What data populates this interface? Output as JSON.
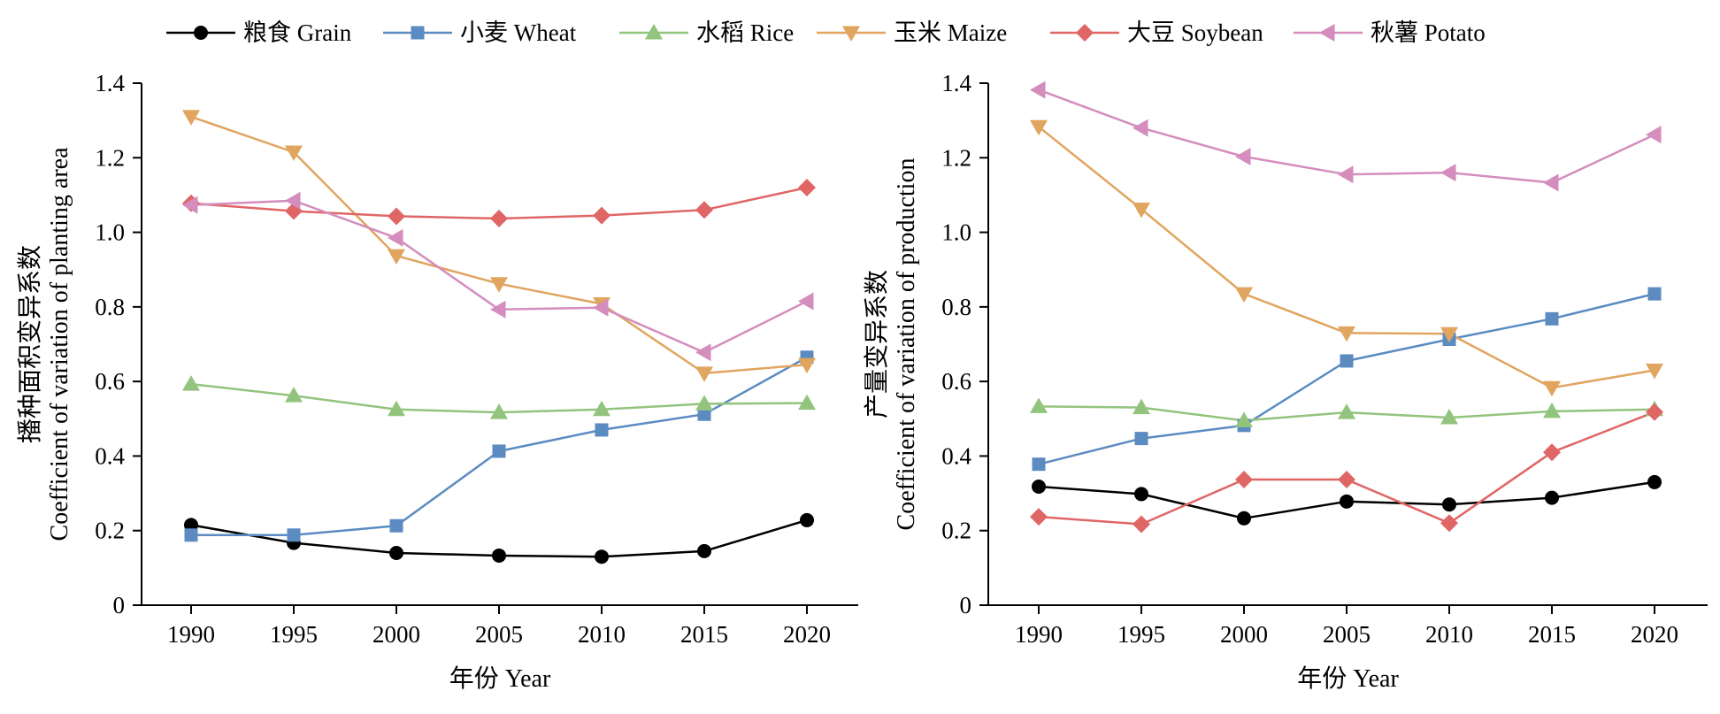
{
  "legend": [
    {
      "key": "grain",
      "label": "粮食 Grain",
      "color": "#000000",
      "marker": "circle"
    },
    {
      "key": "wheat",
      "label": "小麦 Wheat",
      "color": "#5b8bc1",
      "marker": "square"
    },
    {
      "key": "rice",
      "label": "水稻 Rice",
      "color": "#93c47d",
      "marker": "triangle-up"
    },
    {
      "key": "maize",
      "label": "玉米 Maize",
      "color": "#e0a55f",
      "marker": "triangle-down"
    },
    {
      "key": "soybean",
      "label": "大豆 Soybean",
      "color": "#e06666",
      "marker": "diamond"
    },
    {
      "key": "potato",
      "label": "秋薯 Potato",
      "color": "#d48dbd",
      "marker": "triangle-left"
    }
  ],
  "chart_data": [
    {
      "type": "line",
      "xlabel": "年份 Year",
      "ylabel_cn": "播种面积变异系数",
      "ylabel_en": "Coefficient of variation of planting area",
      "x": [
        1990,
        1995,
        2000,
        2005,
        2010,
        2015,
        2020
      ],
      "xticks": [
        "1990",
        "1995",
        "2000",
        "2005",
        "2010",
        "2015",
        "2020"
      ],
      "ylim": [
        0,
        1.4
      ],
      "yticks": [
        "0",
        "0.2",
        "0.4",
        "0.6",
        "0.8",
        "1.0",
        "1.2",
        "1.4"
      ],
      "grid": false,
      "series": [
        {
          "name": "粮食 Grain",
          "key": "grain",
          "values": [
            0.215,
            0.167,
            0.14,
            0.133,
            0.13,
            0.145,
            0.228
          ]
        },
        {
          "name": "小麦 Wheat",
          "key": "wheat",
          "values": [
            0.188,
            0.188,
            0.213,
            0.413,
            0.47,
            0.512,
            0.665
          ]
        },
        {
          "name": "水稻 Rice",
          "key": "rice",
          "values": [
            0.593,
            0.562,
            0.525,
            0.517,
            0.525,
            0.54,
            0.542
          ]
        },
        {
          "name": "玉米 Maize",
          "key": "maize",
          "values": [
            1.31,
            1.215,
            0.937,
            0.862,
            0.808,
            0.622,
            0.645
          ]
        },
        {
          "name": "大豆 Soybean",
          "key": "soybean",
          "values": [
            1.078,
            1.057,
            1.043,
            1.037,
            1.045,
            1.06,
            1.12
          ]
        },
        {
          "name": "秋薯 Potato",
          "key": "potato",
          "values": [
            1.073,
            1.085,
            0.985,
            0.793,
            0.798,
            0.678,
            0.815
          ]
        }
      ]
    },
    {
      "type": "line",
      "xlabel": "年份 Year",
      "ylabel_cn": "产量变异系数",
      "ylabel_en": "Coefficient of variation of production",
      "x": [
        1990,
        1995,
        2000,
        2005,
        2010,
        2015,
        2020
      ],
      "xticks": [
        "1990",
        "1995",
        "2000",
        "2005",
        "2010",
        "2015",
        "2020"
      ],
      "ylim": [
        0,
        1.4
      ],
      "yticks": [
        "0",
        "0.2",
        "0.4",
        "0.6",
        "0.8",
        "1.0",
        "1.2",
        "1.4"
      ],
      "grid": false,
      "series": [
        {
          "name": "粮食 Grain",
          "key": "grain",
          "values": [
            0.318,
            0.298,
            0.233,
            0.278,
            0.27,
            0.288,
            0.33
          ]
        },
        {
          "name": "小麦 Wheat",
          "key": "wheat",
          "values": [
            0.378,
            0.447,
            0.482,
            0.655,
            0.713,
            0.768,
            0.835
          ]
        },
        {
          "name": "水稻 Rice",
          "key": "rice",
          "values": [
            0.533,
            0.53,
            0.495,
            0.517,
            0.503,
            0.52,
            0.525
          ]
        },
        {
          "name": "玉米 Maize",
          "key": "maize",
          "values": [
            1.283,
            1.062,
            0.835,
            0.73,
            0.728,
            0.583,
            0.63
          ]
        },
        {
          "name": "大豆 Soybean",
          "key": "soybean",
          "values": [
            0.237,
            0.217,
            0.337,
            0.337,
            0.22,
            0.41,
            0.518
          ]
        },
        {
          "name": "秋薯 Potato",
          "key": "potato",
          "values": [
            1.382,
            1.28,
            1.203,
            1.155,
            1.16,
            1.133,
            1.262
          ]
        }
      ]
    }
  ]
}
